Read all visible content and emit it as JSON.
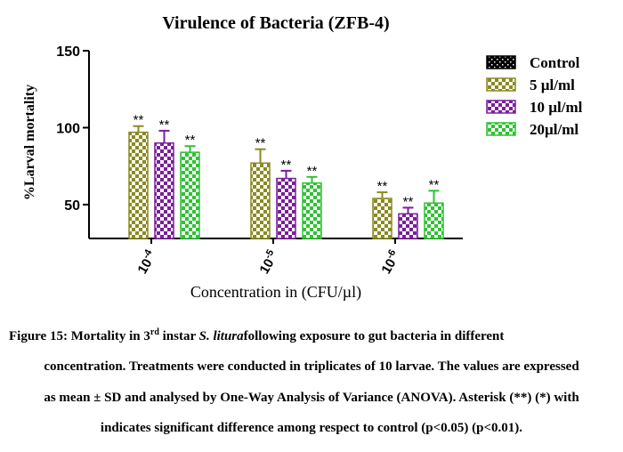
{
  "chart_data": {
    "type": "bar",
    "title": "Virulence of Bacteria (ZFB-4)",
    "xlabel": "Concentration in (CFU/µl)",
    "ylabel": "%Larval mortality",
    "ylim": [
      28,
      150
    ],
    "yticks": [
      50,
      100,
      150
    ],
    "grid": false,
    "legend_position": "top-right",
    "categories": [
      {
        "base": "10",
        "exp": "-4"
      },
      {
        "base": "10",
        "exp": "-5"
      },
      {
        "base": "10",
        "exp": "-6"
      }
    ],
    "series": [
      {
        "name": "Control",
        "color": "#000000",
        "values": [
          0,
          0,
          0
        ],
        "errors": [
          0,
          0,
          0
        ],
        "annotations": [
          "",
          "",
          ""
        ]
      },
      {
        "name": "5 µl/ml",
        "color": "#8a8a21",
        "values": [
          97,
          77,
          54
        ],
        "errors": [
          4,
          9,
          4
        ],
        "annotations": [
          "**",
          "**",
          "**"
        ]
      },
      {
        "name": "10 µl/ml",
        "color": "#7a1f9a",
        "values": [
          90,
          67,
          44
        ],
        "errors": [
          8,
          5,
          4
        ],
        "annotations": [
          "**",
          "**",
          "**"
        ]
      },
      {
        "name": "20µl/ml",
        "color": "#2fc232",
        "values": [
          84,
          64,
          51
        ],
        "errors": [
          4,
          4,
          8
        ],
        "annotations": [
          "**",
          "**",
          "**"
        ]
      }
    ]
  },
  "caption": {
    "line1_a": "Figure 15: Mortality in 3",
    "line1_sup": "rd",
    "line1_b": " instar ",
    "line1_italic": "S. litura",
    "line1_c": "following exposure to gut bacteria in different",
    "line2": "concentration. Treatments were conducted in triplicates of 10 larvae. The values are expressed",
    "line3": "as mean ± SD and analysed by One-Way Analysis of Variance (ANOVA). Asterisk (**) (*) with",
    "line4": "indicates significant difference among respect to control (p<0.05) (p<0.01)."
  }
}
